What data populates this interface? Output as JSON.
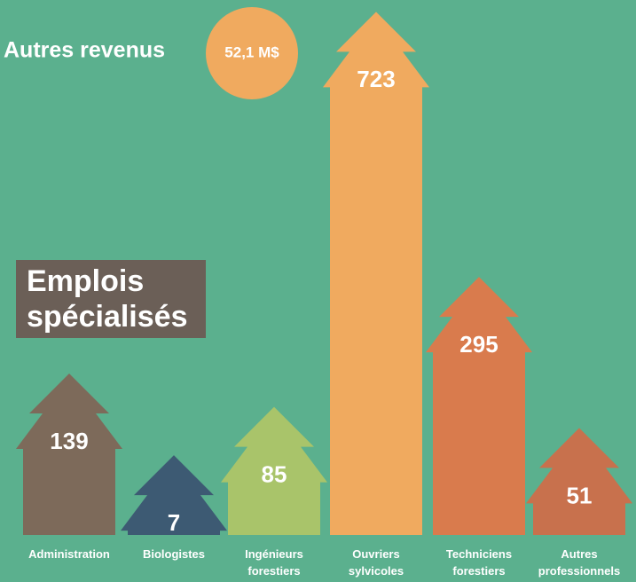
{
  "chart_data": {
    "type": "tree-bar",
    "title": "Emplois spécialisés",
    "other_revenue": {
      "label": "Autres revenus",
      "amount": "52,1 M$"
    },
    "categories": [
      "Administration",
      "Biologistes",
      "Ingénieurs forestiers",
      "Ouvriers sylvicoles",
      "Techniciens forestiers",
      "Autres professionnels"
    ],
    "values": [
      139,
      7,
      85,
      723,
      295,
      51
    ],
    "colors": [
      "#7d6a5a",
      "#3d5a73",
      "#a9c46a",
      "#f0aa5f",
      "#d97b4d",
      "#c8714d"
    ]
  }
}
